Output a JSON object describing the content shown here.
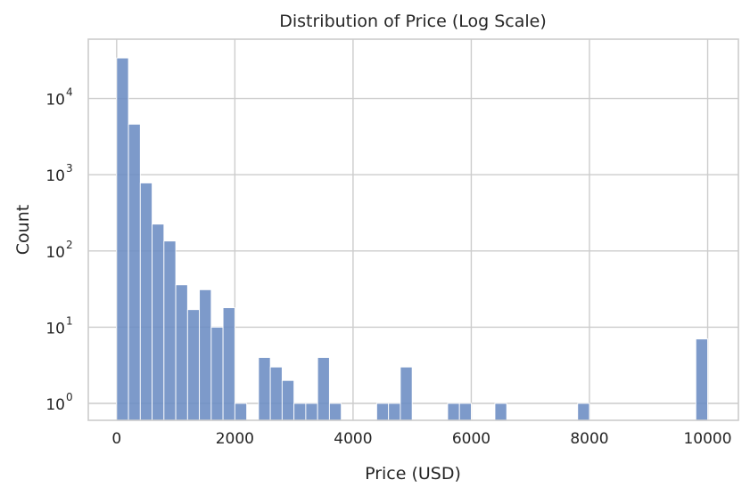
{
  "chart_data": {
    "type": "bar",
    "title": "Distribution of Price (Log Scale)",
    "xlabel": "Price (USD)",
    "ylabel": "Count",
    "y_scale": "log",
    "xlim": [
      -480,
      10520
    ],
    "ylim": [
      0.6,
      60000
    ],
    "grid": true,
    "legend": "none",
    "bar_color": "#6b8cc3",
    "x_ticks": [
      0,
      2000,
      4000,
      6000,
      8000,
      10000
    ],
    "x_tick_labels": [
      "0",
      "2000",
      "4000",
      "6000",
      "8000",
      "10000"
    ],
    "y_ticks": [
      1,
      10,
      100,
      1000,
      10000
    ],
    "y_tick_labels": [
      {
        "base": "10",
        "exp": "0"
      },
      {
        "base": "10",
        "exp": "1"
      },
      {
        "base": "10",
        "exp": "2"
      },
      {
        "base": "10",
        "exp": "3"
      },
      {
        "base": "10",
        "exp": "4"
      }
    ],
    "bin_width": 200,
    "bins": [
      {
        "x0": 0,
        "count": 34000
      },
      {
        "x0": 200,
        "count": 4600
      },
      {
        "x0": 400,
        "count": 780
      },
      {
        "x0": 600,
        "count": 225
      },
      {
        "x0": 800,
        "count": 135
      },
      {
        "x0": 1000,
        "count": 36
      },
      {
        "x0": 1200,
        "count": 17
      },
      {
        "x0": 1400,
        "count": 31
      },
      {
        "x0": 1600,
        "count": 10
      },
      {
        "x0": 1800,
        "count": 18
      },
      {
        "x0": 2000,
        "count": 1
      },
      {
        "x0": 2400,
        "count": 4
      },
      {
        "x0": 2600,
        "count": 3
      },
      {
        "x0": 2800,
        "count": 2
      },
      {
        "x0": 3000,
        "count": 1
      },
      {
        "x0": 3200,
        "count": 1
      },
      {
        "x0": 3400,
        "count": 4
      },
      {
        "x0": 3600,
        "count": 1
      },
      {
        "x0": 4400,
        "count": 1
      },
      {
        "x0": 4600,
        "count": 1
      },
      {
        "x0": 4800,
        "count": 3
      },
      {
        "x0": 5600,
        "count": 1
      },
      {
        "x0": 5800,
        "count": 1
      },
      {
        "x0": 6400,
        "count": 1
      },
      {
        "x0": 7800,
        "count": 1
      },
      {
        "x0": 9800,
        "count": 7
      }
    ]
  }
}
